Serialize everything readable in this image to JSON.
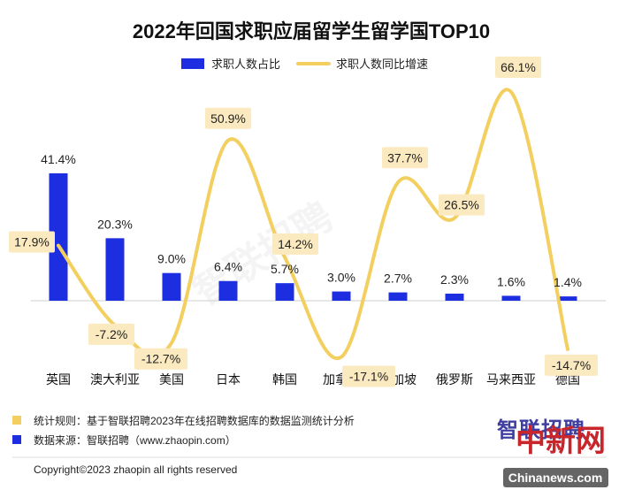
{
  "chart_data": {
    "type": "bar+line",
    "title": "2022年回国求职应届留学生留学国TOP10",
    "categories": [
      "英国",
      "澳大利亚",
      "美国",
      "日本",
      "韩国",
      "加拿大",
      "新加坡",
      "俄罗斯",
      "马来西亚",
      "德国"
    ],
    "series": [
      {
        "name": "求职人数占比",
        "type": "bar",
        "values": [
          41.4,
          20.3,
          9.0,
          6.4,
          5.7,
          3.0,
          2.7,
          2.3,
          1.6,
          1.4
        ],
        "labels": [
          "41.4%",
          "20.3%",
          "9.0%",
          "6.4%",
          "5.7%",
          "3.0%",
          "2.7%",
          "2.3%",
          "1.6%",
          "1.4%"
        ],
        "color": "#1c2ee0"
      },
      {
        "name": "求职人数同比增速",
        "type": "line",
        "values": [
          17.9,
          -7.2,
          -12.7,
          50.9,
          14.2,
          -17.1,
          37.7,
          26.5,
          66.1,
          -14.7
        ],
        "labels": [
          "17.9%",
          "-7.2%",
          "-12.7%",
          "50.9%",
          "14.2%",
          "-17.1%",
          "37.7%",
          "26.5%",
          "66.1%",
          "-14.7%"
        ],
        "color": "#f3cf5f"
      }
    ],
    "legend": "top-center",
    "grid": false
  },
  "footer": {
    "rule": "统计规则：基于智联招聘2023年在线招聘数据库的数据监测统计分析",
    "source": "数据来源：智联招聘（www.zhaopin.com）",
    "copyright": "Copyright©2023 zhaopin all rights reserved",
    "logo": "智联招聘",
    "watermark": "智联招聘",
    "stamp": "中新网",
    "stamp_url": "Chinanews.com"
  },
  "colors": {
    "bar": "#1c2ee0",
    "line": "#f3cf5f",
    "label_bg": "#fbe9bf",
    "rule_marker": "#f3cf5f",
    "source_marker": "#1c2ee0"
  }
}
